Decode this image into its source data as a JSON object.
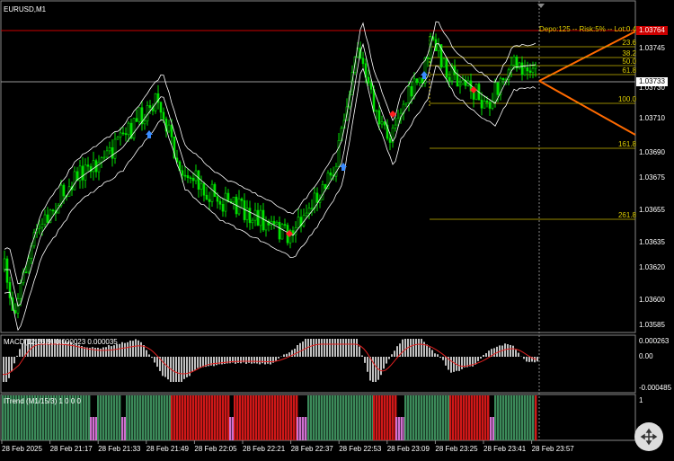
{
  "header": {
    "symbol": "EURUSD,M1",
    "trade_info": "Depo:125 -- Risk:5% -- Lot:0.4"
  },
  "price_axis": {
    "marker_red": "1.03764",
    "marker_current": "1.03733",
    "labels": [
      "1.03745",
      "1.03730",
      "1.03710",
      "1.03690",
      "1.03675",
      "1.03655",
      "1.03635",
      "1.03620",
      "1.03600",
      "1.03585"
    ]
  },
  "fibonacci": {
    "levels": [
      "23.6",
      "38.2",
      "50.0",
      "61.8",
      "100.0",
      "161.8",
      "261.8"
    ]
  },
  "macd": {
    "label": "MACD(12,26,9) 0.000023 0.000035",
    "axis": [
      "0.000263",
      "0.00",
      "-0.000485"
    ]
  },
  "itrend": {
    "label": "ITrend (M1/15/3) 1 0 0 0",
    "axis": [
      "1"
    ]
  },
  "time_axis": [
    "28 Feb 2025",
    "28 Feb 21:17",
    "28 Feb 21:33",
    "28 Feb 21:49",
    "28 Feb 22:05",
    "28 Feb 22:21",
    "28 Feb 22:37",
    "28 Feb 22:53",
    "28 Feb 23:09",
    "28 Feb 23:25",
    "28 Feb 23:41",
    "28 Feb 23:57"
  ]
}
